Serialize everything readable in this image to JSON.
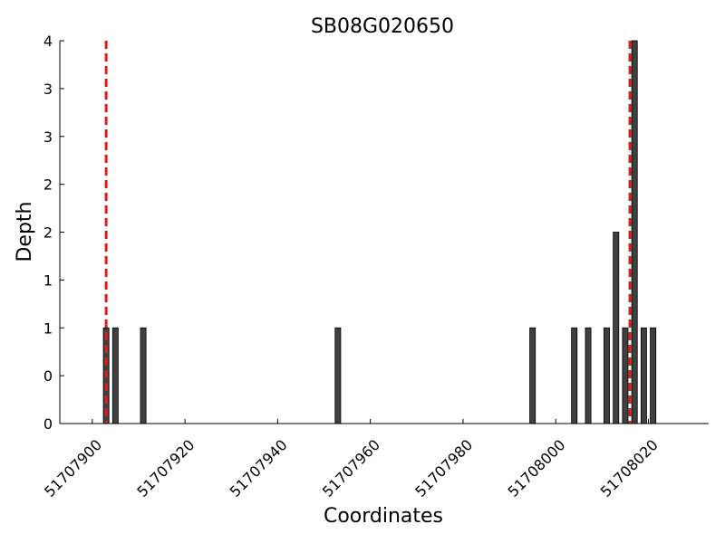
{
  "chart_data": {
    "type": "bar",
    "title": "SB08G020650",
    "xlabel": "Coordinates",
    "ylabel": "Depth",
    "xlim": [
      51707893,
      51708033
    ],
    "ylim": [
      0,
      4
    ],
    "xticks": [
      51707900,
      51707920,
      51707940,
      51707960,
      51707980,
      51708000,
      51708020
    ],
    "xtick_labels": [
      "51707900",
      "51707920",
      "51707940",
      "51707960",
      "51707980",
      "51708000",
      "51708020"
    ],
    "ytick_labels": [
      "0",
      "0",
      "1",
      "1",
      "2",
      "2",
      "3",
      "3",
      "4"
    ],
    "x": [
      51707903,
      51707905,
      51707911,
      51707953,
      51707995,
      51708004,
      51708007,
      51708011,
      51708013,
      51708015,
      51708017,
      51708019,
      51708021
    ],
    "values": [
      1,
      1,
      1,
      1,
      1,
      1,
      1,
      1,
      2,
      1,
      4,
      1,
      1
    ],
    "reference_lines_x": [
      51707903,
      51708016
    ],
    "colors": {
      "bar": "#404040",
      "reference_line": "#e31a1c"
    },
    "grid": false,
    "legend": "none"
  }
}
